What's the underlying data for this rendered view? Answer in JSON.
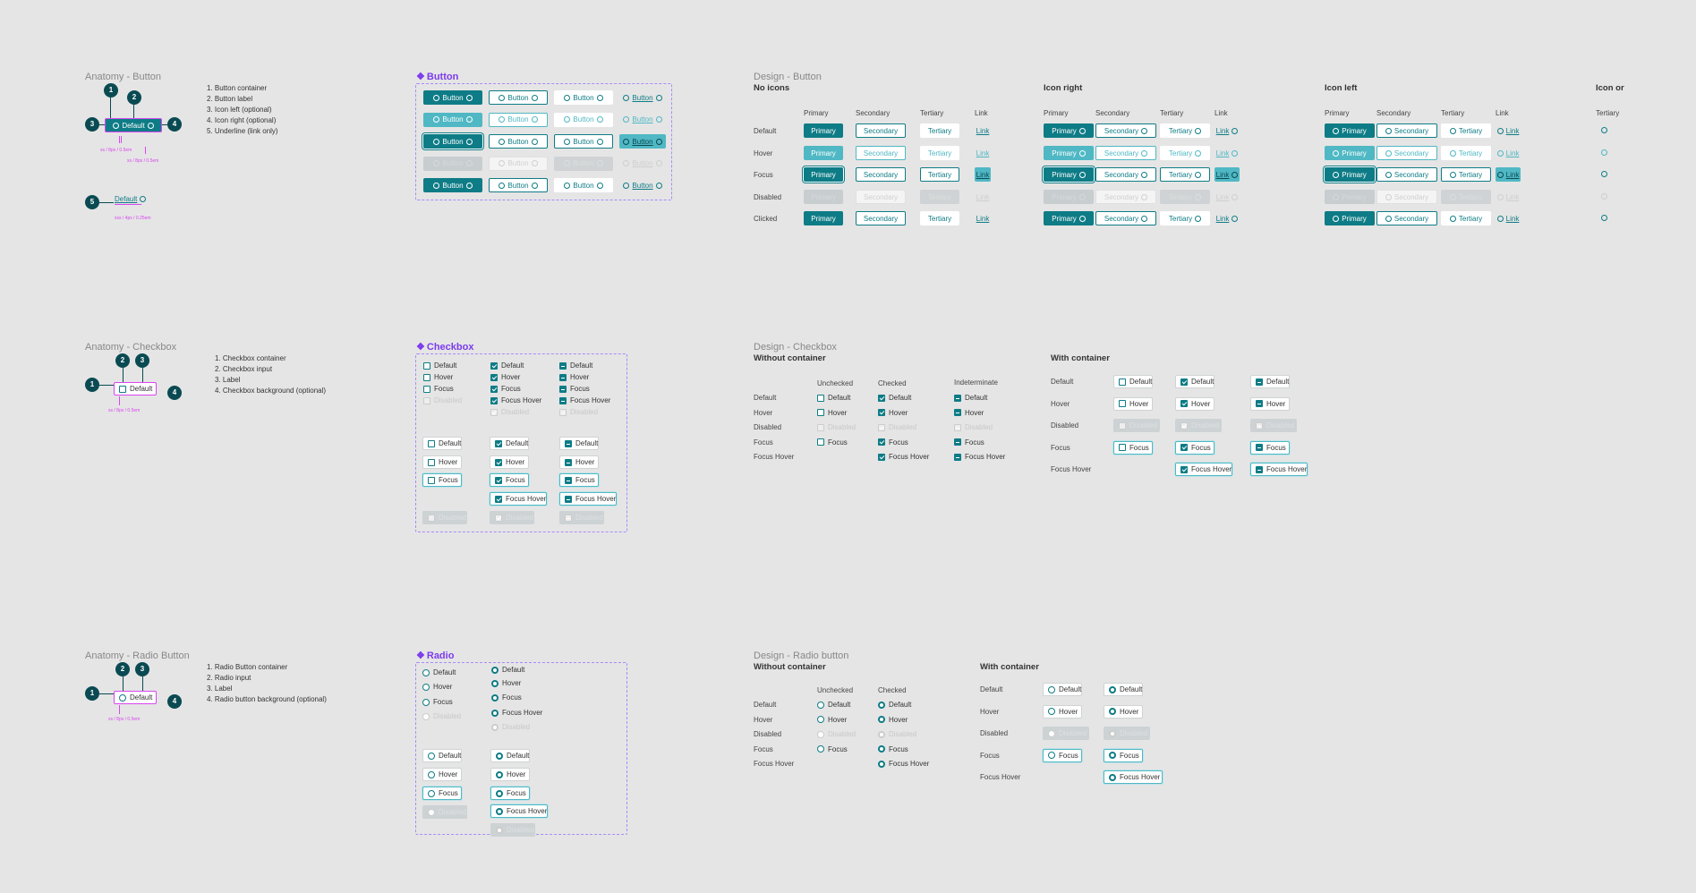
{
  "anatomy": {
    "button": {
      "title": "Anatomy - Button",
      "list": [
        "1. Button container",
        "2. Button label",
        "3. Icon left (optional)",
        "4. Icon right (optional)",
        "5. Underline (link only)"
      ],
      "sample": "Default",
      "link_sample": "Default",
      "spec1": "xs / 8px / 0.5em",
      "spec2": "xs / 8px / 0.5em",
      "spec3": "xxs / 4px / 0.25em"
    },
    "checkbox": {
      "title": "Anatomy - Checkbox",
      "list": [
        "1. Checkbox container",
        "2. Checkbox input",
        "3. Label",
        "4. Checkbox background (optional)"
      ],
      "sample": "Default",
      "spec": "xs / 8px / 0.5em"
    },
    "radio": {
      "title": "Anatomy - Radio Button",
      "list": [
        "1. Radio Button container",
        "2. Radio input",
        "3. Label",
        "4. Radio button background (optional)"
      ],
      "sample": "Default",
      "spec": "xs / 8px / 0.5em"
    },
    "numbers": [
      "1",
      "2",
      "3",
      "4",
      "5"
    ]
  },
  "components": {
    "button": "Button",
    "checkbox": "Checkbox",
    "radio": "Radio",
    "diamond": "❖",
    "button_label": "Button"
  },
  "design_button": {
    "title": "Design - Button",
    "groups": [
      "No icons",
      "Icon right",
      "Icon left",
      "Icon or"
    ],
    "cols": [
      "Primary",
      "Secondary",
      "Tertiary",
      "Link"
    ],
    "rows": [
      "Default",
      "Hover",
      "Focus",
      "Disabled",
      "Clicked"
    ]
  },
  "design_checkbox": {
    "title": "Design - Checkbox",
    "without": "Without container",
    "with": "With container",
    "cols": [
      "Unchecked",
      "Checked",
      "Indeterminate"
    ],
    "rows": [
      "Default",
      "Hover",
      "Disabled",
      "Focus",
      "Focus Hover"
    ]
  },
  "design_radio": {
    "title": "Design - Radio button",
    "without": "Without container",
    "with": "With container",
    "cols": [
      "Unchecked",
      "Checked"
    ],
    "rows": [
      "Default",
      "Hover",
      "Disabled",
      "Focus",
      "Focus Hover"
    ]
  },
  "states": {
    "default": "Default",
    "hover": "Hover",
    "focus": "Focus",
    "focus_hover": "Focus Hover",
    "disabled": "Disabled"
  },
  "labels": {
    "primary": "Primary",
    "secondary": "Secondary",
    "tertiary": "Tertiary",
    "link": "Link"
  },
  "colors": {
    "accent": "#0e7c86",
    "accent_light": "#4fb8c4",
    "section_border": "#a78bfa",
    "spec": "#d946ef"
  }
}
